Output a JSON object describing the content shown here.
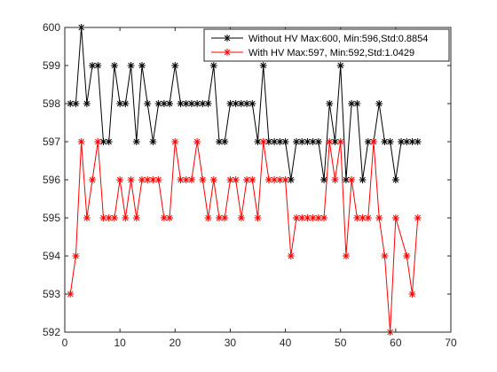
{
  "chart_data": {
    "type": "line",
    "xlim": [
      0,
      70
    ],
    "ylim": [
      592,
      600
    ],
    "xticks": [
      0,
      10,
      20,
      30,
      40,
      50,
      60,
      70
    ],
    "yticks": [
      592,
      593,
      594,
      595,
      596,
      597,
      598,
      599,
      600
    ],
    "grid": false,
    "legend_position": "top-right",
    "title": "",
    "xlabel": "",
    "ylabel": "",
    "series": [
      {
        "name": "Without HV Max:600, Min:596,Std:0.8854",
        "color": "#000000",
        "marker": "asterisk",
        "x": [
          1,
          2,
          3,
          4,
          5,
          6,
          7,
          8,
          9,
          10,
          11,
          12,
          13,
          14,
          15,
          16,
          17,
          18,
          19,
          20,
          21,
          22,
          23,
          24,
          25,
          26,
          27,
          28,
          29,
          30,
          31,
          32,
          33,
          34,
          35,
          36,
          37,
          38,
          39,
          40,
          41,
          42,
          43,
          44,
          45,
          46,
          47,
          48,
          49,
          50,
          51,
          52,
          53,
          54,
          55,
          56,
          57,
          58,
          59,
          60,
          61,
          62,
          63,
          64
        ],
        "y": [
          598,
          598,
          600,
          598,
          599,
          599,
          597,
          597,
          599,
          598,
          598,
          599,
          597,
          599,
          598,
          597,
          598,
          598,
          598,
          599,
          598,
          598,
          598,
          598,
          598,
          598,
          599,
          597,
          597,
          598,
          598,
          598,
          598,
          598,
          597,
          599,
          597,
          597,
          597,
          597,
          596,
          597,
          597,
          597,
          597,
          597,
          596,
          598,
          597,
          599,
          596,
          598,
          598,
          596,
          597,
          597,
          598,
          597,
          597,
          596,
          597,
          597,
          597,
          597
        ]
      },
      {
        "name": "With HV Max:597, Min:592,Std:1.0429",
        "color": "#ff0000",
        "marker": "asterisk",
        "x": [
          1,
          2,
          3,
          4,
          5,
          6,
          7,
          8,
          9,
          10,
          11,
          12,
          13,
          14,
          15,
          16,
          17,
          18,
          19,
          20,
          21,
          22,
          23,
          24,
          25,
          26,
          27,
          28,
          29,
          30,
          31,
          32,
          33,
          34,
          35,
          36,
          37,
          38,
          39,
          40,
          41,
          42,
          43,
          44,
          45,
          46,
          47,
          48,
          49,
          50,
          51,
          52,
          53,
          54,
          55,
          56,
          57,
          58,
          59,
          60,
          62,
          63,
          64
        ],
        "y": [
          593,
          594,
          597,
          595,
          596,
          597,
          595,
          595,
          595,
          596,
          595,
          596,
          595,
          596,
          596,
          596,
          596,
          595,
          595,
          597,
          596,
          596,
          596,
          597,
          596,
          595,
          596,
          595,
          595,
          596,
          596,
          595,
          596,
          596,
          595,
          597,
          596,
          596,
          596,
          596,
          594,
          595,
          595,
          595,
          595,
          595,
          595,
          597,
          596,
          597,
          594,
          596,
          595,
          595,
          595,
          597,
          595,
          594,
          592,
          595,
          594,
          593,
          595
        ]
      }
    ]
  }
}
